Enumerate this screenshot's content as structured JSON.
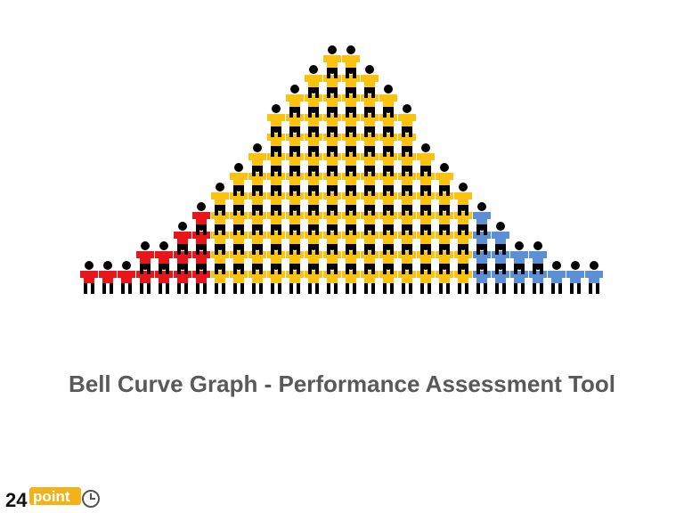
{
  "title": "Bell Curve Graph - Performance Assessment Tool",
  "logo": {
    "number": "24",
    "word": "point"
  }
}
